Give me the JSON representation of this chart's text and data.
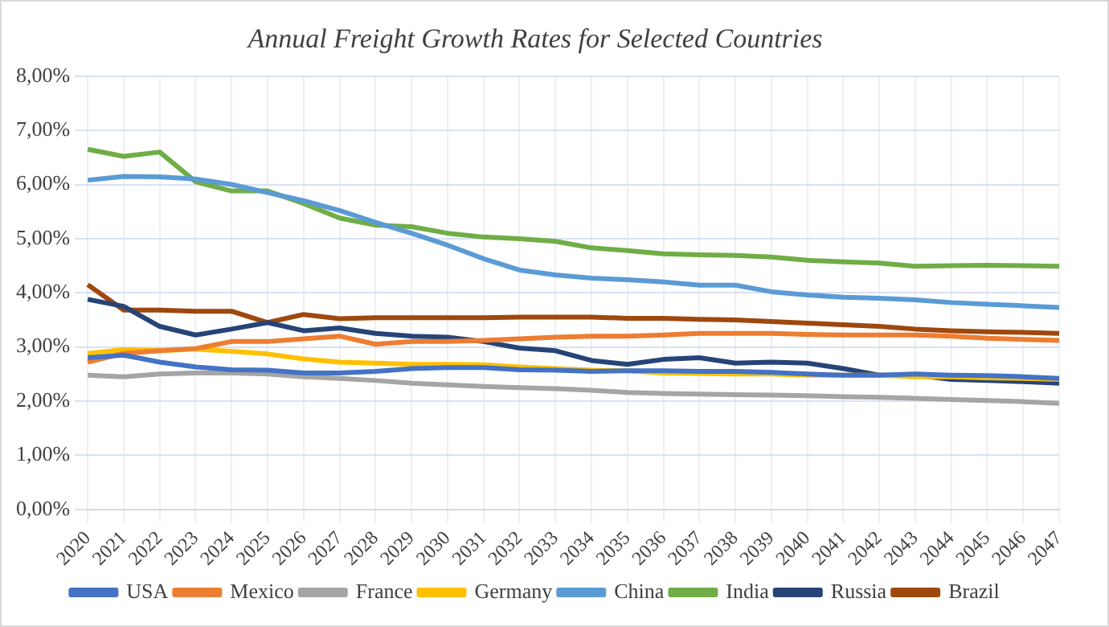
{
  "chart_data": {
    "type": "line",
    "title": "Annual Freight Growth Rates for Selected Countries",
    "categories": [
      "2020",
      "2021",
      "2022",
      "2023",
      "2024",
      "2025",
      "2026",
      "2027",
      "2028",
      "2029",
      "2030",
      "2031",
      "2032",
      "2033",
      "2034",
      "2035",
      "2036",
      "2037",
      "2038",
      "2039",
      "2040",
      "2041",
      "2042",
      "2043",
      "2044",
      "2045",
      "2046",
      "2047"
    ],
    "series": [
      {
        "name": "USA",
        "color": "#4472c4",
        "values": [
          2.8,
          2.85,
          2.72,
          2.63,
          2.58,
          2.57,
          2.52,
          2.52,
          2.55,
          2.6,
          2.62,
          2.62,
          2.58,
          2.57,
          2.55,
          2.56,
          2.56,
          2.55,
          2.55,
          2.53,
          2.5,
          2.48,
          2.48,
          2.5,
          2.48,
          2.47,
          2.45,
          2.42
        ]
      },
      {
        "name": "Mexico",
        "color": "#ed7d31",
        "values": [
          2.72,
          2.88,
          2.93,
          2.97,
          3.1,
          3.1,
          3.15,
          3.2,
          3.05,
          3.1,
          3.1,
          3.12,
          3.15,
          3.18,
          3.2,
          3.2,
          3.22,
          3.25,
          3.25,
          3.25,
          3.23,
          3.22,
          3.22,
          3.22,
          3.2,
          3.16,
          3.14,
          3.12
        ]
      },
      {
        "name": "France",
        "color": "#a5a5a5",
        "values": [
          2.48,
          2.45,
          2.5,
          2.52,
          2.52,
          2.5,
          2.45,
          2.42,
          2.38,
          2.33,
          2.3,
          2.27,
          2.25,
          2.23,
          2.2,
          2.16,
          2.14,
          2.13,
          2.12,
          2.11,
          2.1,
          2.08,
          2.07,
          2.05,
          2.03,
          2.01,
          1.99,
          1.96
        ]
      },
      {
        "name": "Germany",
        "color": "#ffc000",
        "values": [
          2.88,
          2.95,
          2.93,
          2.96,
          2.92,
          2.87,
          2.78,
          2.72,
          2.7,
          2.68,
          2.68,
          2.67,
          2.63,
          2.6,
          2.57,
          2.56,
          2.52,
          2.51,
          2.5,
          2.5,
          2.48,
          null,
          2.48,
          2.45,
          2.45,
          2.43,
          2.42,
          2.4
        ]
      },
      {
        "name": "China",
        "color": "#5b9bd5",
        "values": [
          6.08,
          6.15,
          6.14,
          6.1,
          6.0,
          5.85,
          5.7,
          5.52,
          5.3,
          5.1,
          4.88,
          4.63,
          4.42,
          4.33,
          4.27,
          4.24,
          4.2,
          4.14,
          4.14,
          4.02,
          3.96,
          3.92,
          3.9,
          3.87,
          3.82,
          3.79,
          3.76,
          3.73
        ]
      },
      {
        "name": "India",
        "color": "#70ad47",
        "values": [
          6.65,
          6.52,
          6.6,
          6.05,
          5.88,
          5.88,
          5.65,
          5.38,
          5.25,
          5.22,
          5.1,
          5.03,
          5.0,
          4.95,
          4.83,
          4.78,
          4.72,
          4.7,
          4.69,
          4.66,
          4.6,
          4.57,
          4.55,
          4.49,
          4.5,
          4.51,
          4.5,
          4.49
        ]
      },
      {
        "name": "Russia",
        "color": "#264478",
        "values": [
          3.88,
          3.75,
          3.38,
          3.22,
          3.33,
          3.45,
          3.3,
          3.35,
          3.25,
          3.2,
          3.18,
          3.1,
          2.98,
          2.93,
          2.75,
          2.68,
          2.77,
          2.8,
          2.7,
          2.72,
          2.7,
          2.6,
          2.48,
          2.48,
          2.4,
          2.38,
          2.36,
          2.33
        ]
      },
      {
        "name": "Brazil",
        "color": "#9e480e",
        "values": [
          4.15,
          3.68,
          3.68,
          3.66,
          3.66,
          3.45,
          3.6,
          3.52,
          3.54,
          3.54,
          3.54,
          3.54,
          3.55,
          3.55,
          3.55,
          3.53,
          3.53,
          3.51,
          3.5,
          3.47,
          3.44,
          3.41,
          3.38,
          3.33,
          3.3,
          3.28,
          3.27,
          3.25
        ]
      }
    ],
    "ylim": [
      0,
      8
    ],
    "yticks": [
      {
        "value": 0,
        "label": "0,00%"
      },
      {
        "value": 1,
        "label": "1,00%"
      },
      {
        "value": 2,
        "label": "2,00%"
      },
      {
        "value": 3,
        "label": "3,00%"
      },
      {
        "value": 4,
        "label": "4,00%"
      },
      {
        "value": 5,
        "label": "5,00%"
      },
      {
        "value": 6,
        "label": "6,00%"
      },
      {
        "value": 7,
        "label": "7,00%"
      },
      {
        "value": 8,
        "label": "8,00%"
      }
    ],
    "grid": true,
    "legend": "bottom",
    "marker": "none",
    "line_style": "solid"
  }
}
